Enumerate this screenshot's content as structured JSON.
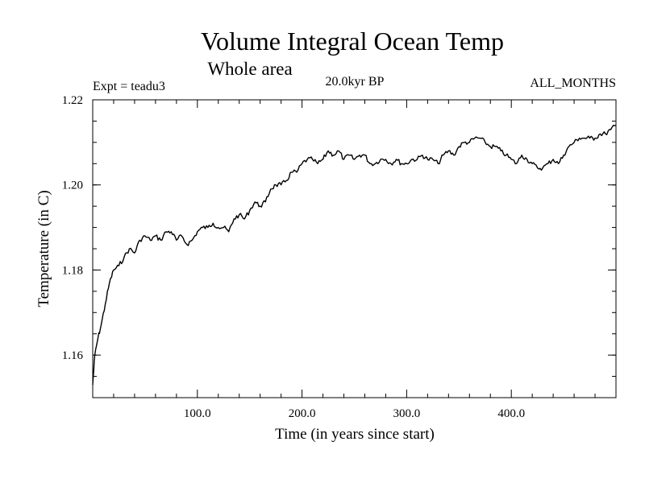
{
  "chart_data": {
    "type": "line",
    "title": "Volume Integral Ocean Temp",
    "subtitle": "Whole area",
    "annotations": {
      "experiment": "Expt = teadu3",
      "period": "20.0kyr BP",
      "months": "ALL_MONTHS"
    },
    "xlabel": "Time (in years since start)",
    "ylabel": "Temperature (in C)",
    "xlim": [
      0,
      500
    ],
    "ylim": [
      1.15,
      1.22
    ],
    "x_ticks": [
      {
        "value": 100,
        "label": "100.0"
      },
      {
        "value": 200,
        "label": "200.0"
      },
      {
        "value": 300,
        "label": "300.0"
      },
      {
        "value": 400,
        "label": "400.0"
      }
    ],
    "y_ticks": [
      {
        "value": 1.16,
        "label": "1.16"
      },
      {
        "value": 1.18,
        "label": "1.18"
      },
      {
        "value": 1.2,
        "label": "1.20"
      },
      {
        "value": 1.22,
        "label": "1.22"
      }
    ],
    "grid": false,
    "series": [
      {
        "name": "Volume Integral Ocean Temp",
        "color": "#000000",
        "x": [
          0,
          2,
          5,
          8,
          12,
          16,
          20,
          25,
          30,
          35,
          40,
          45,
          50,
          55,
          60,
          65,
          70,
          75,
          80,
          85,
          90,
          95,
          100,
          105,
          110,
          115,
          120,
          125,
          130,
          135,
          140,
          145,
          150,
          155,
          160,
          165,
          170,
          175,
          180,
          185,
          190,
          195,
          200,
          205,
          210,
          215,
          220,
          225,
          230,
          235,
          240,
          245,
          250,
          255,
          260,
          265,
          270,
          275,
          280,
          285,
          290,
          295,
          300,
          305,
          310,
          315,
          320,
          325,
          330,
          335,
          340,
          345,
          350,
          355,
          360,
          365,
          370,
          375,
          380,
          385,
          390,
          395,
          400,
          405,
          410,
          415,
          420,
          425,
          430,
          435,
          440,
          445,
          450,
          455,
          460,
          465,
          470,
          475,
          480,
          485,
          490,
          495,
          500
        ],
        "values": [
          1.153,
          1.16,
          1.164,
          1.167,
          1.172,
          1.177,
          1.18,
          1.181,
          1.183,
          1.185,
          1.184,
          1.187,
          1.188,
          1.187,
          1.188,
          1.187,
          1.189,
          1.189,
          1.187,
          1.188,
          1.186,
          1.187,
          1.189,
          1.19,
          1.19,
          1.191,
          1.19,
          1.19,
          1.189,
          1.192,
          1.193,
          1.192,
          1.194,
          1.196,
          1.195,
          1.196,
          1.199,
          1.2,
          1.2,
          1.201,
          1.203,
          1.203,
          1.205,
          1.206,
          1.206,
          1.205,
          1.206,
          1.208,
          1.207,
          1.208,
          1.206,
          1.207,
          1.206,
          1.207,
          1.207,
          1.205,
          1.205,
          1.206,
          1.206,
          1.205,
          1.206,
          1.205,
          1.205,
          1.206,
          1.206,
          1.207,
          1.206,
          1.206,
          1.205,
          1.207,
          1.208,
          1.207,
          1.209,
          1.21,
          1.21,
          1.211,
          1.211,
          1.21,
          1.209,
          1.209,
          1.208,
          1.207,
          1.206,
          1.205,
          1.207,
          1.206,
          1.205,
          1.204,
          1.204,
          1.205,
          1.206,
          1.205,
          1.207,
          1.209,
          1.21,
          1.211,
          1.211,
          1.211,
          1.211,
          1.212,
          1.212,
          1.213,
          1.214
        ]
      }
    ]
  }
}
